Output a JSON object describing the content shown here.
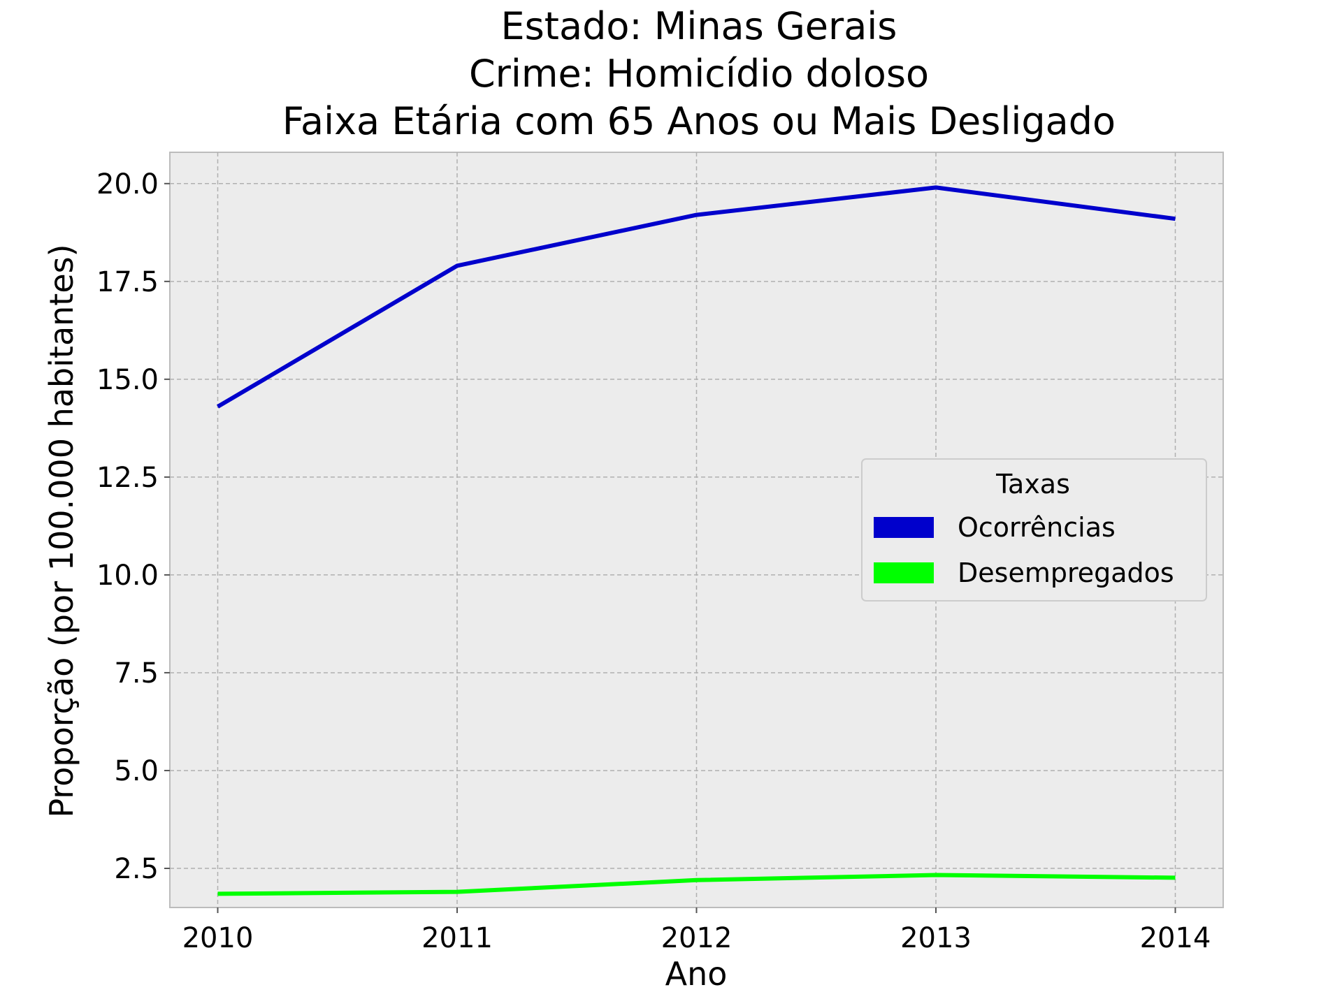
{
  "chart_data": {
    "type": "line",
    "title": [
      "Estado: Minas Gerais",
      "Crime: Homicídio doloso",
      "Faixa Etária com 65 Anos ou Mais   Desligado"
    ],
    "xlabel": "Ano",
    "ylabel": "Proporção (por 100.000 habitantes)",
    "x": [
      2010,
      2011,
      2012,
      2013,
      2014
    ],
    "x_ticks": [
      "2010",
      "2011",
      "2012",
      "2013",
      "2014"
    ],
    "y_ticks": [
      "2.5",
      "5.0",
      "7.5",
      "10.0",
      "12.5",
      "15.0",
      "17.5",
      "20.0"
    ],
    "xlim": [
      2009.8,
      2014.2
    ],
    "ylim": [
      1.5,
      20.8
    ],
    "grid": true,
    "legend": {
      "title": "Taxas",
      "placement": "center-right"
    },
    "series": [
      {
        "name": "Ocorrências",
        "color": "#0000cc",
        "values": [
          14.3,
          17.9,
          19.2,
          19.9,
          19.1
        ]
      },
      {
        "name": "Desempregados",
        "color": "#00ff00",
        "values": [
          1.85,
          1.9,
          2.2,
          2.33,
          2.26
        ]
      }
    ]
  }
}
